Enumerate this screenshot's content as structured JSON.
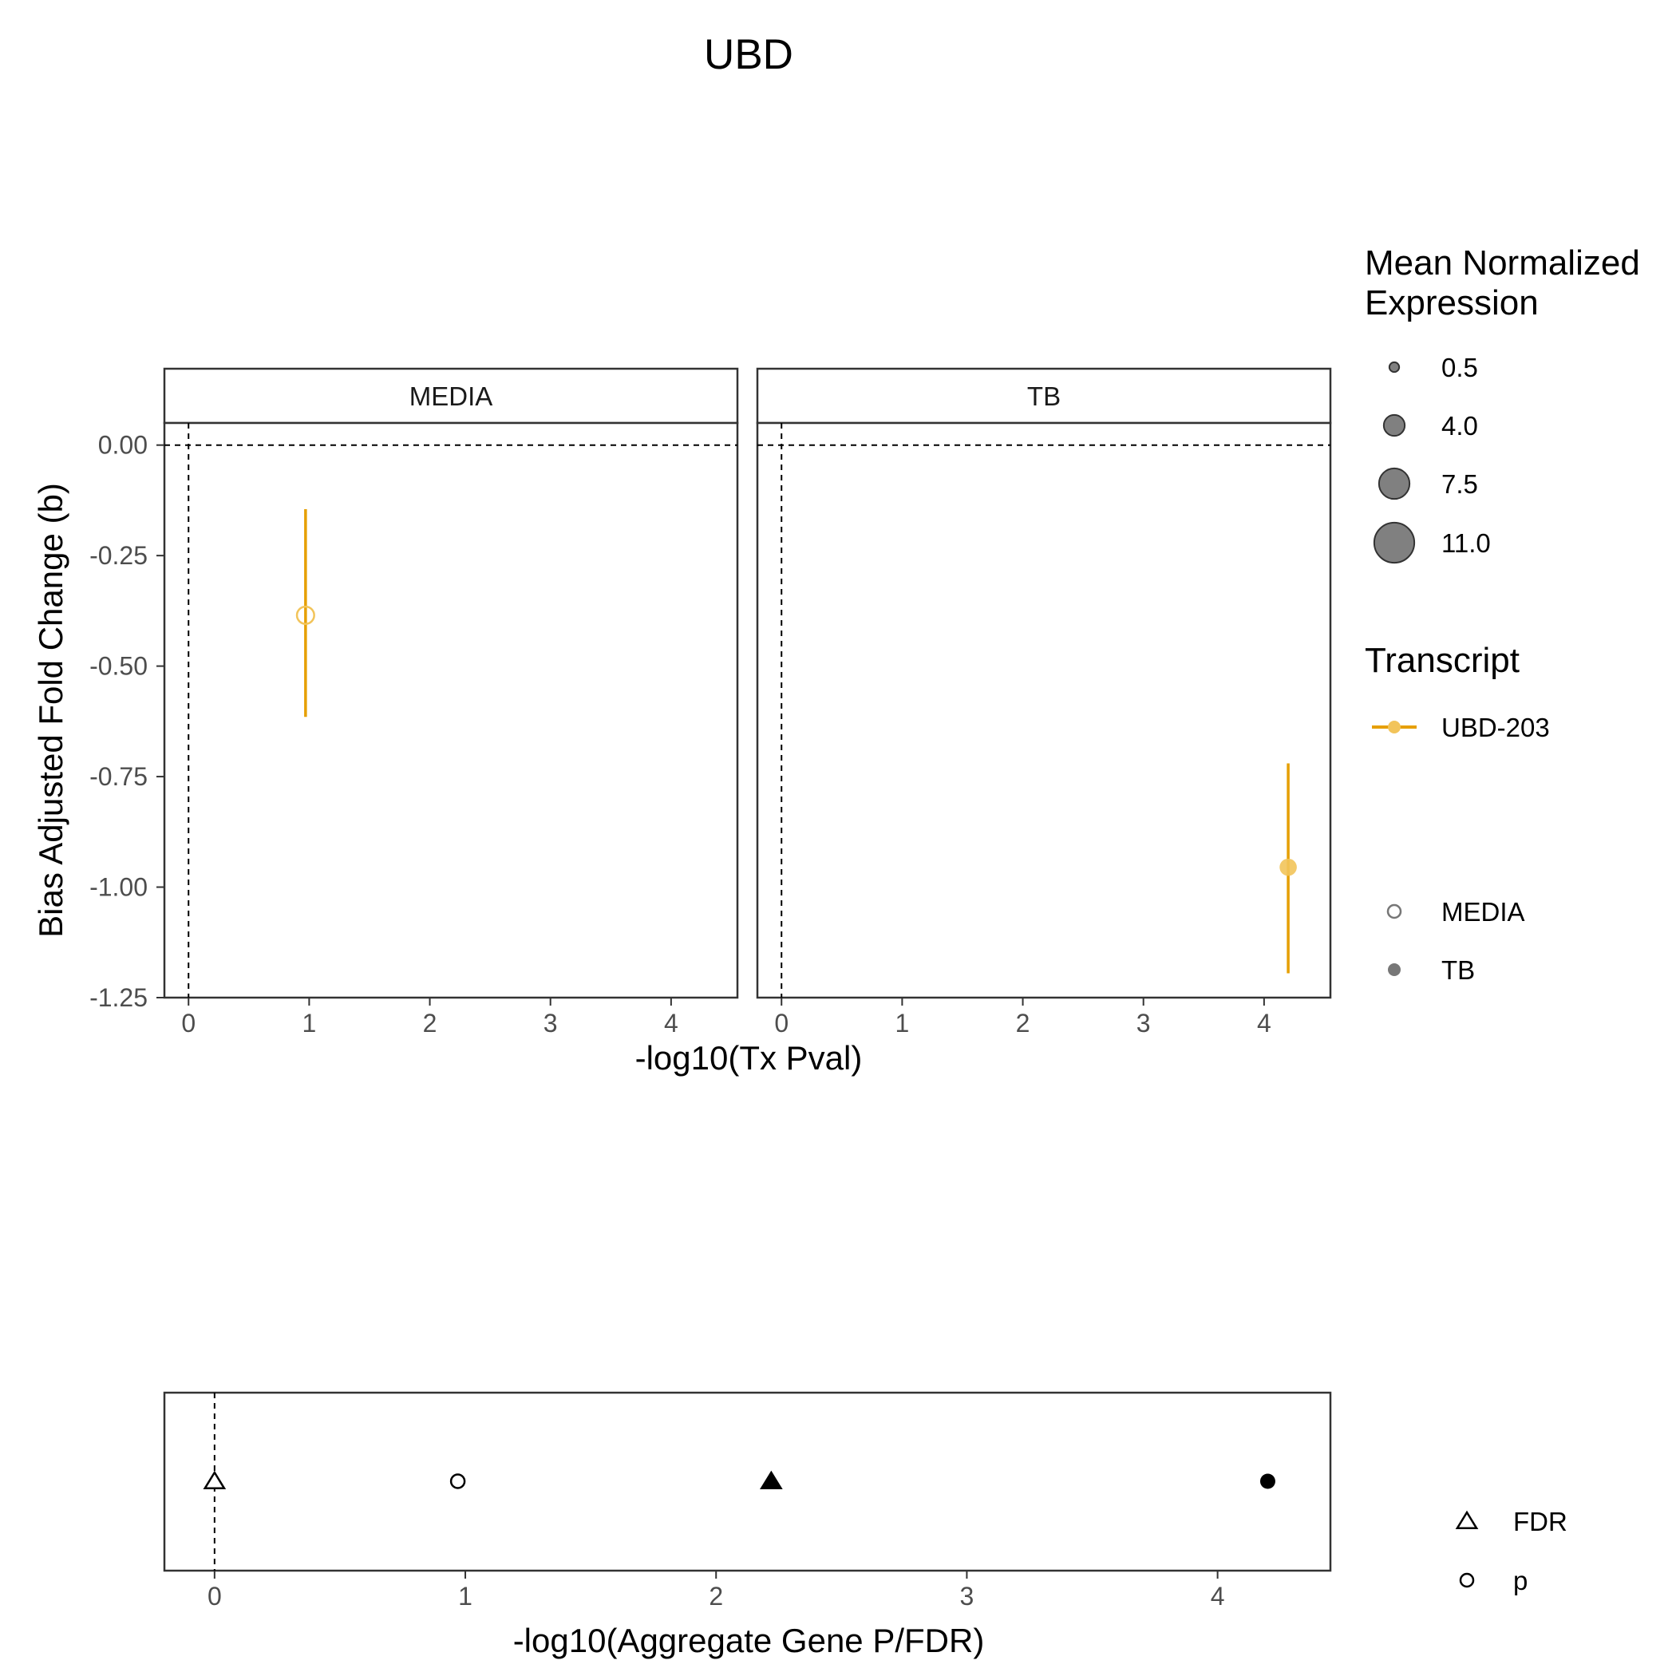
{
  "chart_data": [
    {
      "type": "scatter",
      "title": "UBD",
      "xlabel": "-log10(Tx Pval)",
      "ylabel": "Bias Adjusted Fold Change (b)",
      "ylim": [
        -1.25,
        0.05
      ],
      "xlim": [
        -0.2,
        4.55
      ],
      "x_ticks": [
        "0",
        "1",
        "2",
        "3",
        "4"
      ],
      "y_ticks": [
        "0.00",
        "-0.25",
        "-0.50",
        "-0.75",
        "-1.00",
        "-1.25"
      ],
      "grid": false,
      "panels": [
        {
          "strip": "MEDIA",
          "points": [
            {
              "transcript": "UBD-203",
              "condition": "MEDIA",
              "x": 0.97,
              "y": -0.385,
              "ymin": -0.615,
              "ymax": -0.145,
              "expression": 2.0
            }
          ]
        },
        {
          "strip": "TB",
          "points": [
            {
              "transcript": "UBD-203",
              "condition": "TB",
              "x": 4.2,
              "y": -0.955,
              "ymin": -1.195,
              "ymax": -0.72,
              "expression": 2.0
            }
          ]
        }
      ],
      "reference_lines": {
        "x": 0,
        "y": 0
      },
      "legend": {
        "position": "right",
        "size_title": "Mean Normalized\nExpression",
        "size_title_lines": [
          "Mean Normalized",
          "Expression"
        ],
        "size_entries": [
          "0.5",
          "4.0",
          "7.5",
          "11.0"
        ],
        "color_title": "Transcript",
        "color_entries": [
          {
            "label": "UBD-203",
            "color": "#E69F00"
          }
        ],
        "shape_entries": [
          {
            "label": "MEDIA",
            "shape": "open-circle"
          },
          {
            "label": "TB",
            "shape": "filled-circle"
          }
        ]
      }
    },
    {
      "type": "scatter",
      "xlabel": "-log10(Aggregate Gene P/FDR)",
      "xlim": [
        -0.2,
        4.45
      ],
      "x_ticks": [
        "0",
        "1",
        "2",
        "3",
        "4"
      ],
      "reference_lines": {
        "x": 0
      },
      "points": [
        {
          "x": 0.0,
          "measure": "FDR",
          "condition": "MEDIA",
          "shape": "open-triangle"
        },
        {
          "x": 0.97,
          "measure": "p",
          "condition": "MEDIA",
          "shape": "open-circle"
        },
        {
          "x": 2.22,
          "measure": "FDR",
          "condition": "TB",
          "shape": "filled-triangle"
        },
        {
          "x": 4.2,
          "measure": "p",
          "condition": "TB",
          "shape": "filled-circle"
        }
      ],
      "legend": {
        "position": "right",
        "shape_entries": [
          {
            "label": "FDR",
            "shape": "open-triangle"
          },
          {
            "label": "p",
            "shape": "open-circle"
          }
        ]
      }
    }
  ],
  "colors": {
    "transcript": "#E69F00",
    "transcript_fill": "#F2C45A",
    "text": "#000000",
    "tick_text": "#4d4d4d"
  }
}
